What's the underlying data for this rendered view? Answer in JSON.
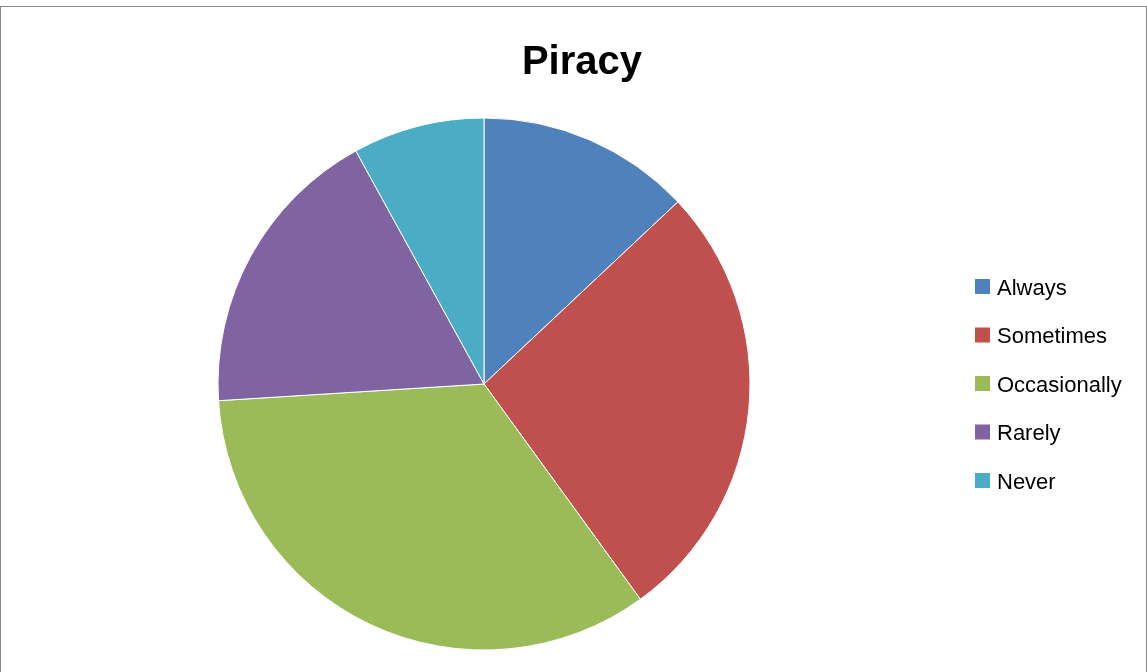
{
  "chart_data": {
    "type": "pie",
    "title": "Piracy",
    "categories": [
      "Always",
      "Sometimes",
      "Occasionally",
      "Rarely",
      "Never"
    ],
    "values": [
      13,
      27,
      34,
      18,
      8
    ],
    "colors": [
      "#4f81bd",
      "#c0504d",
      "#9bbb59",
      "#8064a2",
      "#4bacc6"
    ],
    "legend": "right"
  }
}
